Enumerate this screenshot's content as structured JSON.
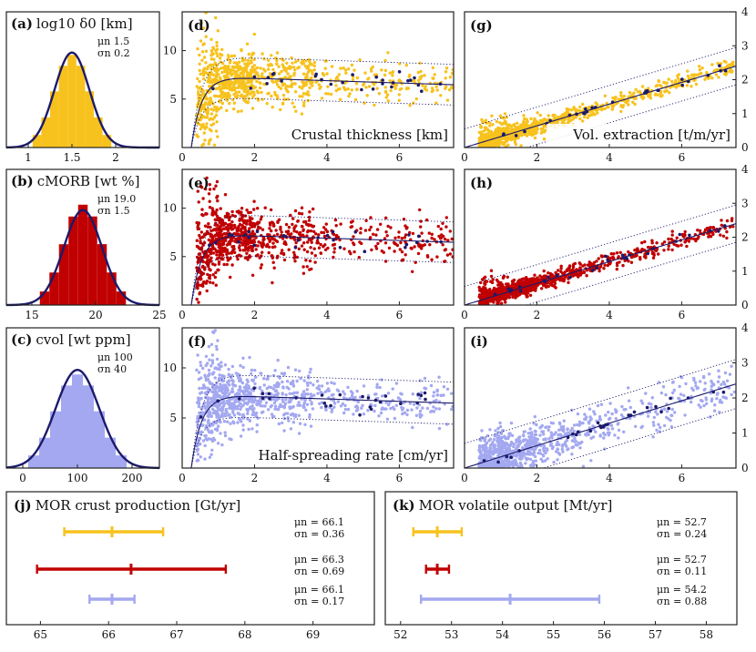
{
  "colors": {
    "yellow": "#f7c21d",
    "red": "#c00000",
    "lavender": "#a3a8f0",
    "navy": "#1b1a6b",
    "frame": "#222222"
  },
  "chart_data": [
    {
      "id": "a",
      "type": "histogram",
      "label": "(a)",
      "title": "log10 δ0 [km]",
      "stat_mu_label": "μn",
      "stat_mu_value": "1.5",
      "stat_sigma_label": "σn",
      "stat_sigma_value": "0.2",
      "mean": 1.5,
      "sd": 0.2,
      "xlim": [
        0.75,
        2.5
      ],
      "xticks": [
        "1",
        "1.5",
        "2"
      ],
      "xtick_values": [
        1,
        1.5,
        2
      ],
      "color": "#f7c21d"
    },
    {
      "id": "b",
      "type": "histogram",
      "label": "(b)",
      "title": "cMORB [wt %]",
      "stat_mu_label": "μn",
      "stat_mu_value": "19.0",
      "stat_sigma_label": "σn",
      "stat_sigma_value": "1.5",
      "mean": 19.0,
      "sd": 1.5,
      "xlim": [
        13,
        25
      ],
      "xticks": [
        "15",
        "20",
        "25"
      ],
      "xtick_values": [
        15,
        20,
        25
      ],
      "color": "#c00000"
    },
    {
      "id": "c",
      "type": "histogram",
      "label": "(c)",
      "title": "cvol [wt ppm]",
      "stat_mu_label": "μn",
      "stat_mu_value": "100",
      "stat_sigma_label": "σn",
      "stat_sigma_value": "40",
      "mean": 100,
      "sd": 40,
      "xlim": [
        -30,
        250
      ],
      "xticks": [
        "0",
        "100",
        "200"
      ],
      "xtick_values": [
        0,
        100,
        200
      ],
      "color": "#a3a8f0"
    },
    {
      "id": "d",
      "type": "scatter",
      "label": "(d)",
      "annotation": "Crustal thickness [km]",
      "xlim": [
        0,
        7.5
      ],
      "ylim": [
        0,
        14
      ],
      "xticks": [
        "0",
        "2",
        "4",
        "6"
      ],
      "xtick_values": [
        0,
        2,
        4,
        6
      ],
      "yticks": [
        "5",
        "10"
      ],
      "ytick_values": [
        5,
        10
      ],
      "fit": "thickness",
      "color": "#f7c21d",
      "seed": 11
    },
    {
      "id": "e",
      "type": "scatter",
      "label": "(e)",
      "xlim": [
        0,
        7.5
      ],
      "ylim": [
        0,
        14
      ],
      "xticks": [
        "0",
        "2",
        "4",
        "6"
      ],
      "xtick_values": [
        0,
        2,
        4,
        6
      ],
      "yticks": [
        "5",
        "10"
      ],
      "ytick_values": [
        5,
        10
      ],
      "fit": "thickness",
      "color": "#c00000",
      "seed": 23
    },
    {
      "id": "f",
      "type": "scatter",
      "label": "(f)",
      "annotation": "Half-spreading rate [cm/yr]",
      "xlim": [
        0,
        7.5
      ],
      "ylim": [
        0,
        14
      ],
      "xticks": [
        "0",
        "2",
        "4",
        "6"
      ],
      "xtick_values": [
        0,
        2,
        4,
        6
      ],
      "yticks": [
        "5",
        "10"
      ],
      "ytick_values": [
        5,
        10
      ],
      "fit": "thickness",
      "color": "#a3a8f0",
      "seed": 37
    },
    {
      "id": "g",
      "type": "scatter",
      "label": "(g)",
      "annotation": "Vol. extraction [t/m/yr]",
      "xlim": [
        0,
        7.5
      ],
      "ylim": [
        0,
        4
      ],
      "xticks": [
        "0",
        "2",
        "4",
        "6"
      ],
      "xtick_values": [
        0,
        2,
        4,
        6
      ],
      "yticks": [
        "0",
        "1",
        "2",
        "3",
        "4"
      ],
      "ytick_values": [
        0,
        1,
        2,
        3,
        4
      ],
      "fit": "linear",
      "slope": 0.32,
      "band": 0.55,
      "color": "#f7c21d",
      "seed": 41
    },
    {
      "id": "h",
      "type": "scatter",
      "label": "(h)",
      "xlim": [
        0,
        7.5
      ],
      "ylim": [
        0,
        4
      ],
      "xticks": [
        "0",
        "2",
        "4",
        "6"
      ],
      "xtick_values": [
        0,
        2,
        4,
        6
      ],
      "yticks": [
        "0",
        "1",
        "2",
        "3",
        "4"
      ],
      "ytick_values": [
        0,
        1,
        2,
        3,
        4
      ],
      "fit": "linear",
      "slope": 0.32,
      "band": 0.55,
      "color": "#c00000",
      "seed": 53
    },
    {
      "id": "i",
      "type": "scatter",
      "label": "(i)",
      "xlim": [
        0,
        7.5
      ],
      "ylim": [
        0,
        4
      ],
      "xticks": [
        "0",
        "2",
        "4",
        "6"
      ],
      "xtick_values": [
        0,
        2,
        4,
        6
      ],
      "yticks": [
        "0",
        "1",
        "2",
        "3",
        "4"
      ],
      "ytick_values": [
        0,
        1,
        2,
        3,
        4
      ],
      "fit": "linear",
      "slope": 0.32,
      "band": 0.7,
      "color": "#a3a8f0",
      "seed": 67
    },
    {
      "id": "j",
      "type": "errorbar",
      "label": "(j)",
      "title": "MOR crust production [Gt/yr]",
      "xlim": [
        64.5,
        69.9
      ],
      "xticks": [
        "65",
        "66",
        "67",
        "68",
        "69"
      ],
      "xtick_values": [
        65,
        66,
        67,
        68,
        69
      ],
      "series": [
        {
          "color": "#f7c21d",
          "mean": 66.05,
          "low": 65.35,
          "high": 66.8,
          "mu_label": "μn",
          "mu_text": "= 66.1",
          "sigma_label": "σn",
          "sigma_text": "= 0.36"
        },
        {
          "color": "#c00000",
          "mean": 66.33,
          "low": 64.95,
          "high": 67.72,
          "mu_label": "μn",
          "mu_text": "= 66.3",
          "sigma_label": "σn",
          "sigma_text": "= 0.69"
        },
        {
          "color": "#a3a8f0",
          "mean": 66.05,
          "low": 65.72,
          "high": 66.38,
          "mu_label": "μn",
          "mu_text": "= 66.1",
          "sigma_label": "σn",
          "sigma_text": "= 0.17"
        }
      ]
    },
    {
      "id": "k",
      "type": "errorbar",
      "label": "(k)",
      "title": "MOR volatile output [Mt/yr]",
      "xlim": [
        51.7,
        58.6
      ],
      "xticks": [
        "52",
        "53",
        "54",
        "55",
        "56",
        "57",
        "58"
      ],
      "xtick_values": [
        52,
        53,
        54,
        55,
        56,
        57,
        58
      ],
      "series": [
        {
          "color": "#f7c21d",
          "mean": 52.72,
          "low": 52.25,
          "high": 53.2,
          "mu_label": "μn",
          "mu_text": "= 52.7",
          "sigma_label": "σn",
          "sigma_text": "= 0.24"
        },
        {
          "color": "#c00000",
          "mean": 52.72,
          "low": 52.5,
          "high": 52.95,
          "mu_label": "μn",
          "mu_text": "= 52.7",
          "sigma_label": "σn",
          "sigma_text": "= 0.11"
        },
        {
          "color": "#a3a8f0",
          "mean": 54.15,
          "low": 52.4,
          "high": 55.9,
          "mu_label": "μn",
          "mu_text": "= 54.2",
          "sigma_label": "σn",
          "sigma_text": "= 0.88"
        }
      ]
    }
  ]
}
